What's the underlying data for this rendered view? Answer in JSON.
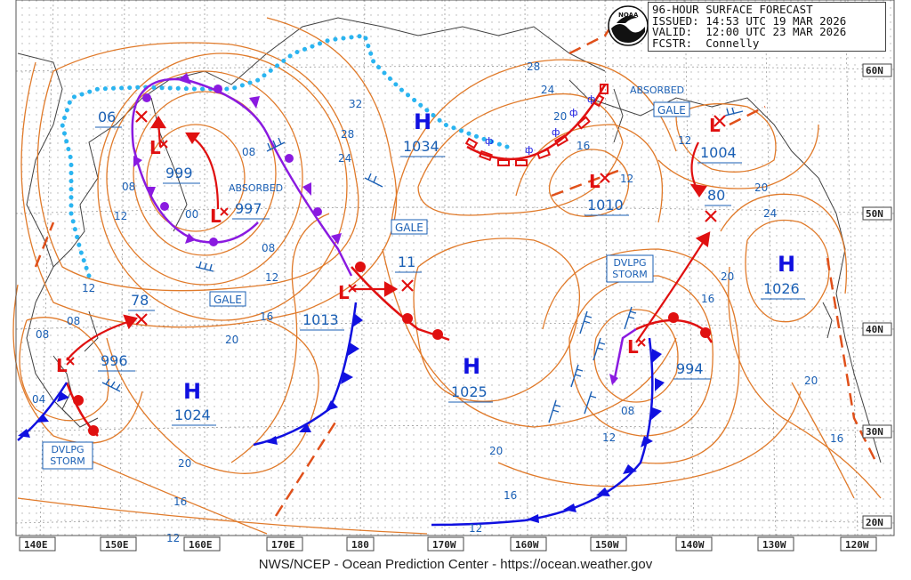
{
  "header": {
    "title": "96-HOUR SURFACE FORECAST",
    "issued": "ISSUED: 14:53 UTC 19 MAR 2026",
    "valid": "VALID:  12:00 UTC 23 MAR 2026",
    "forecaster": "FCSTR:  Connelly",
    "logo_text": "NOAA"
  },
  "footer": "NWS/NCEP - Ocean Prediction Center - https://ocean.weather.gov",
  "latitude_labels": [
    "60N",
    "50N",
    "40N",
    "30N",
    "20N"
  ],
  "longitude_labels": [
    "140E",
    "150E",
    "160E",
    "170E",
    "180",
    "170W",
    "160W",
    "150W",
    "140W",
    "130W",
    "120W"
  ],
  "highs": [
    {
      "symbol": "H",
      "pressure": "1034"
    },
    {
      "symbol": "H",
      "pressure": "1024"
    },
    {
      "symbol": "H",
      "pressure": "1025"
    },
    {
      "symbol": "H",
      "pressure": "1026"
    }
  ],
  "lows": [
    {
      "symbol": "L",
      "pressure": "999"
    },
    {
      "symbol": "L",
      "pressure": "997"
    },
    {
      "symbol": "L",
      "pressure": "1013"
    },
    {
      "symbol": "L",
      "pressure": "996"
    },
    {
      "symbol": "L",
      "pressure": "994"
    },
    {
      "symbol": "L",
      "pressure": "1010"
    },
    {
      "symbol": "L",
      "pressure": "1004"
    }
  ],
  "future_positions": [
    "06",
    "78",
    "11",
    "80"
  ],
  "warning_labels": [
    "GALE",
    "GALE",
    "GALE",
    "DVLPG STORM",
    "DVLPG STORM"
  ],
  "status_labels": [
    "ABSORBED",
    "ABSORBED"
  ],
  "isobar_labels": [
    "08",
    "12",
    "08",
    "00",
    "08",
    "12",
    "16",
    "20",
    "32",
    "28",
    "24",
    "08",
    "04",
    "12",
    "08",
    "20",
    "16",
    "12",
    "12",
    "16",
    "20",
    "28",
    "24",
    "20",
    "16",
    "12",
    "08",
    "12",
    "20",
    "24",
    "20",
    "16",
    "16",
    "20",
    "12"
  ],
  "colors": {
    "isobar": "#e07a2a",
    "warm_front": "#e01010",
    "cold_front": "#1010e0",
    "occluded_front": "#8a1ae0",
    "ice_edge": "#2ab4f0",
    "label_text": "#1a5fb4",
    "high_low_symbol": "#1010e0",
    "land": "#404040",
    "grid": "#9a9a9a"
  }
}
